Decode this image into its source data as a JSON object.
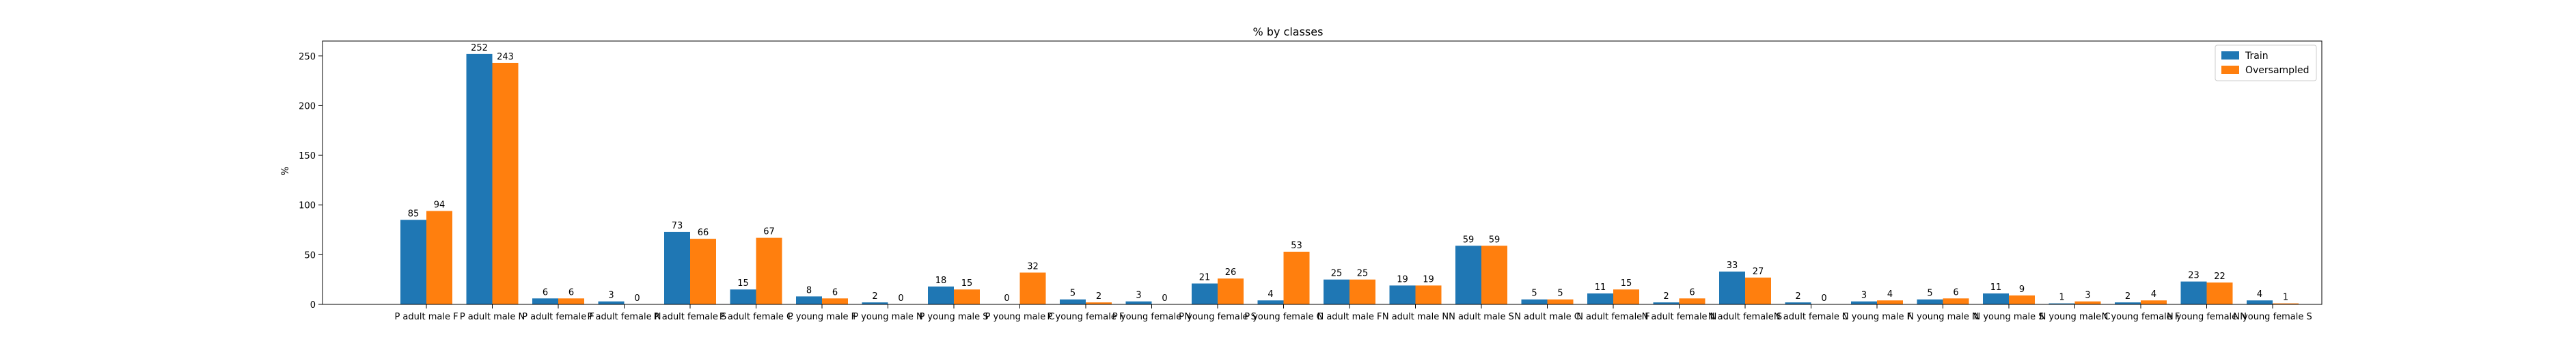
{
  "chart_data": {
    "type": "bar",
    "title": "% by classes",
    "xlabel": "",
    "ylabel": "%",
    "ylim": [
      0,
      265
    ],
    "yticks": [
      0,
      50,
      100,
      150,
      200,
      250
    ],
    "grid": false,
    "legend_position": "top-right",
    "categories": [
      "P adult male F",
      "P adult male N",
      "P adult female F",
      "P adult female N",
      "P adult female S",
      "P adult female C",
      "P young male F",
      "P young male N",
      "P young male S",
      "P young male C",
      "P young female F",
      "P young female N",
      "P young female S",
      "P young female C",
      "N adult male F",
      "N adult male N",
      "N adult male S",
      "N adult male C",
      "N adult female F",
      "N adult female N",
      "N adult female S",
      "N adult female C",
      "N young male F",
      "N young male N",
      "N young male S",
      "N young male C",
      "N young female F",
      "N young female N",
      "N young female S"
    ],
    "series": [
      {
        "name": "Train",
        "color": "#1f77b4",
        "values": [
          85,
          252,
          6,
          3,
          73,
          15,
          8,
          2,
          18,
          0,
          5,
          3,
          21,
          4,
          25,
          19,
          59,
          5,
          11,
          2,
          33,
          2,
          3,
          5,
          11,
          1,
          2,
          23,
          4
        ]
      },
      {
        "name": "Oversampled",
        "color": "#ff7f0e",
        "values": [
          94,
          243,
          6,
          0,
          66,
          67,
          6,
          0,
          15,
          32,
          2,
          0,
          26,
          53,
          25,
          19,
          59,
          5,
          15,
          6,
          27,
          0,
          4,
          6,
          9,
          3,
          4,
          22,
          1
        ]
      }
    ]
  }
}
